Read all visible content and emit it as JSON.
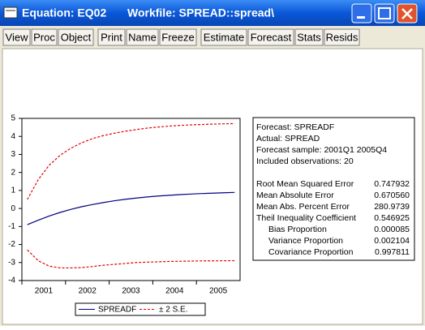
{
  "window": {
    "title": "Equation: EQ02",
    "workfile": "Workfile: SPREAD::spread\\"
  },
  "toolbar": [
    "View",
    "Proc",
    "Object",
    "Print",
    "Name",
    "Freeze",
    "Estimate",
    "Forecast",
    "Stats",
    "Resids"
  ],
  "chart_data": {
    "type": "line",
    "categories": [
      "2001",
      null,
      null,
      null,
      "2002",
      null,
      null,
      null,
      "2003",
      null,
      null,
      null,
      "2004",
      null,
      null,
      null,
      "2005",
      null,
      null,
      null
    ],
    "series": [
      {
        "name": "SPREADF",
        "color": "#000080",
        "values": [
          -0.9,
          -0.65,
          -0.42,
          -0.22,
          -0.05,
          0.1,
          0.22,
          0.33,
          0.43,
          0.51,
          0.58,
          0.64,
          0.69,
          0.73,
          0.77,
          0.8,
          0.83,
          0.85,
          0.87,
          0.89
        ]
      },
      {
        "name": "± 2 S.E.",
        "color": "#e00000",
        "dashed": true,
        "values": [
          0.5,
          1.6,
          2.4,
          2.95,
          3.35,
          3.65,
          3.88,
          4.05,
          4.18,
          4.29,
          4.38,
          4.46,
          4.52,
          4.57,
          4.61,
          4.64,
          4.66,
          4.68,
          4.7,
          4.71
        ],
        "lower": [
          -2.3,
          -2.9,
          -3.2,
          -3.3,
          -3.3,
          -3.28,
          -3.22,
          -3.15,
          -3.1,
          -3.05,
          -3.0,
          -2.98,
          -2.96,
          -2.94,
          -2.93,
          -2.92,
          -2.91,
          -2.91,
          -2.9,
          -2.9
        ]
      }
    ],
    "ylim": [
      -4,
      5
    ],
    "yticks": [
      -4,
      -3,
      -2,
      -1,
      0,
      1,
      2,
      3,
      4,
      5
    ]
  },
  "forecast_stats": {
    "header": [
      "Forecast: SPREADF",
      "Actual: SPREAD",
      "Forecast sample: 2001Q1 2005Q4",
      "Included observations: 20"
    ],
    "rows": [
      [
        "Root Mean Squared Error",
        "0.747932"
      ],
      [
        "Mean Absolute Error",
        "0.670560"
      ],
      [
        "Mean Abs. Percent Error",
        "280.9739"
      ],
      [
        "Theil Inequality Coefficient",
        "0.546925"
      ],
      [
        "Bias Proportion",
        "0.000085"
      ],
      [
        "Variance Proportion",
        "0.002104"
      ],
      [
        "Covariance Proportion",
        "0.997811"
      ]
    ]
  }
}
